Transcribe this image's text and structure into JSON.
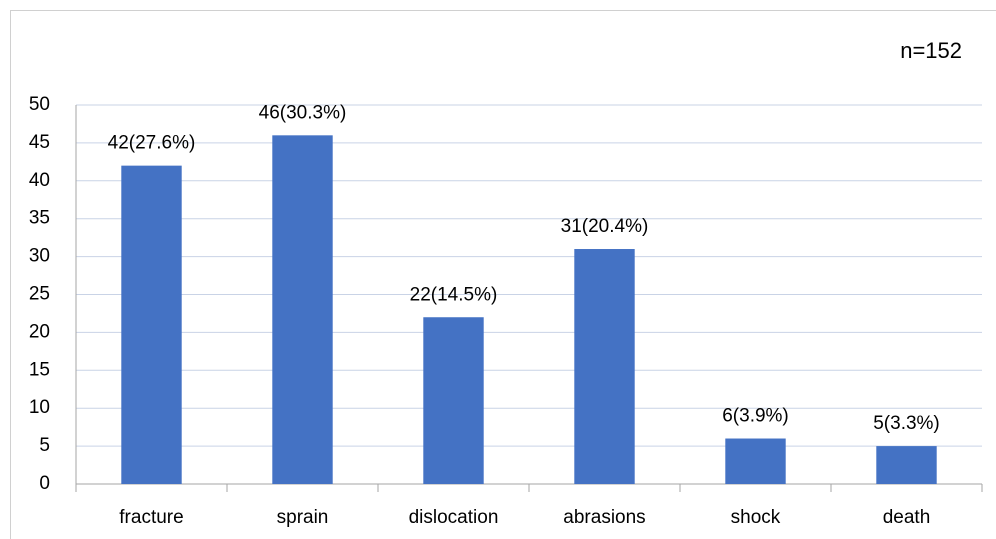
{
  "chart_data": {
    "type": "bar",
    "annotation": "n=152",
    "categories": [
      "fracture",
      "sprain",
      "dislocation",
      "abrasions",
      "shock",
      "death"
    ],
    "values": [
      42,
      46,
      22,
      31,
      6,
      5
    ],
    "value_labels": [
      "42(27.6%)",
      "46(30.3%)",
      "22(14.5%)",
      "31(20.4%)",
      "6(3.9%)",
      "5(3.3%)"
    ],
    "color": "#4472c4",
    "ylim": [
      0,
      50
    ],
    "yticks": [
      0,
      5,
      10,
      15,
      20,
      25,
      30,
      35,
      40,
      45,
      50
    ],
    "grid": true
  }
}
